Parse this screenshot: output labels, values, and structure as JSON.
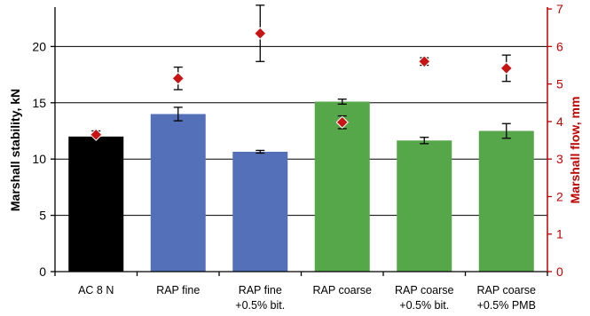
{
  "chart_data": {
    "type": "bar",
    "categories": [
      [
        "AC 8 N"
      ],
      [
        "RAP fine"
      ],
      [
        "RAP fine",
        "+0.5% bit."
      ],
      [
        "RAP coarse"
      ],
      [
        "RAP coarse",
        "+0.5% bit."
      ],
      [
        "RAP coarse",
        "+0.5% PMB"
      ]
    ],
    "series": [
      {
        "kind": "bar",
        "axis": "left",
        "values": [
          12.0,
          14.0,
          10.65,
          15.1,
          11.65,
          12.5
        ],
        "errors": [
          0.3,
          0.6,
          0.12,
          0.22,
          0.28,
          0.65
        ],
        "colors": [
          "#000000",
          "#5470b8",
          "#5470b8",
          "#56a64a",
          "#56a64a",
          "#56a64a"
        ]
      },
      {
        "kind": "marker",
        "axis": "right",
        "marker": "diamond",
        "values": [
          3.65,
          5.15,
          6.35,
          3.98,
          5.6,
          5.42
        ],
        "errors": [
          0.1,
          0.3,
          0.75,
          0.17,
          0.1,
          0.35
        ],
        "color": "#c81414"
      }
    ],
    "ylabel": "Marshall stability, kN",
    "y2label": "Marshall flow, mm",
    "ylim": [
      0,
      23.5
    ],
    "y2lim": [
      0,
      7.05
    ],
    "yticks": [
      0,
      5,
      10,
      15,
      20
    ],
    "y2ticks": [
      0,
      1,
      2,
      3,
      4,
      5,
      6,
      7
    ],
    "grid": true,
    "colors": {
      "left_axis": "#000000",
      "right_axis": "#c00000",
      "gridline": "#000000"
    }
  }
}
